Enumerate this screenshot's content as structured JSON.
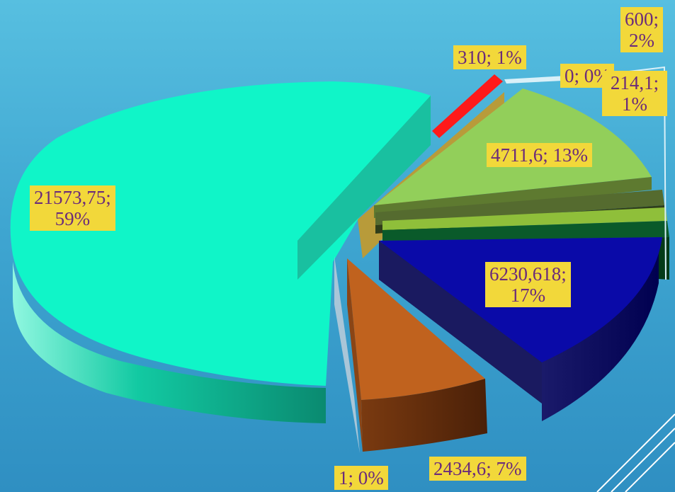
{
  "chart_data": {
    "type": "pie",
    "title": "",
    "three_d": true,
    "exploded": true,
    "slices": [
      {
        "value": 21573.75,
        "percent": "59%",
        "label_line1": "21573,75;",
        "label_line2": "59%",
        "color": "#10f5c8"
      },
      {
        "value": 310,
        "percent": "1%",
        "label_line1": "310; 1%",
        "label_line2": "",
        "color": "#ff1a1a"
      },
      {
        "value": 0,
        "percent": "0%",
        "label_line1": "0; 0%",
        "label_line2": "",
        "color": "#d9f0f8"
      },
      {
        "value": 600,
        "percent": "2%",
        "label_line1": "600;",
        "label_line2": "2%",
        "color": "#8fbf3a"
      },
      {
        "value": 4711.6,
        "percent": "13%",
        "label_line1": "4711,6; 13%",
        "label_line2": "",
        "color": "#92cf5a"
      },
      {
        "value": 214.1,
        "percent": "1%",
        "label_line1": "214,1;",
        "label_line2": "1%",
        "color": "#556b2f"
      },
      {
        "value": 6230.618,
        "percent": "17%",
        "label_line1": "6230,618;",
        "label_line2": "17%",
        "color": "#0a0aa8"
      },
      {
        "value": 2434.6,
        "percent": "7%",
        "label_line1": "2434,6; 7%",
        "label_line2": "",
        "color": "#c0621e"
      },
      {
        "value": 1,
        "percent": "0%",
        "label_line1": "1; 0%",
        "label_line2": "",
        "color": "#a9c6d8"
      }
    ]
  }
}
